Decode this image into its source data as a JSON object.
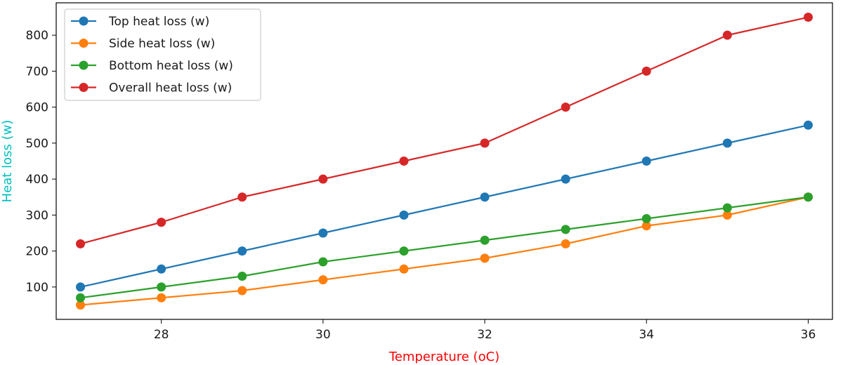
{
  "chart_data": {
    "type": "line",
    "title": "",
    "xlabel": "Temperature (oC)",
    "ylabel": "Heat loss (w)",
    "xlabel_color": "#ff0000",
    "ylabel_color": "#00bfbf",
    "xlim": [
      26.7,
      36.3
    ],
    "ylim": [
      10,
      890
    ],
    "x_ticks": [
      28,
      30,
      32,
      34,
      36
    ],
    "y_ticks": [
      100,
      200,
      300,
      400,
      500,
      600,
      700,
      800
    ],
    "grid": false,
    "legend_position": "top-left",
    "x": [
      27,
      28,
      29,
      30,
      31,
      32,
      33,
      34,
      35,
      36
    ],
    "series": [
      {
        "name": "Top heat loss (w)",
        "color": "#1f77b4",
        "values": [
          100,
          150,
          200,
          250,
          300,
          350,
          400,
          450,
          500,
          550
        ]
      },
      {
        "name": "Side heat loss (w)",
        "color": "#ff7f0e",
        "values": [
          50,
          70,
          90,
          120,
          150,
          180,
          220,
          270,
          300,
          350
        ]
      },
      {
        "name": "Bottom heat loss (w)",
        "color": "#2ca02c",
        "values": [
          70,
          100,
          130,
          170,
          200,
          230,
          260,
          290,
          320,
          350
        ]
      },
      {
        "name": "Overall heat loss (w)",
        "color": "#d62728",
        "values": [
          220,
          280,
          350,
          400,
          450,
          500,
          600,
          700,
          800,
          850
        ]
      }
    ]
  }
}
